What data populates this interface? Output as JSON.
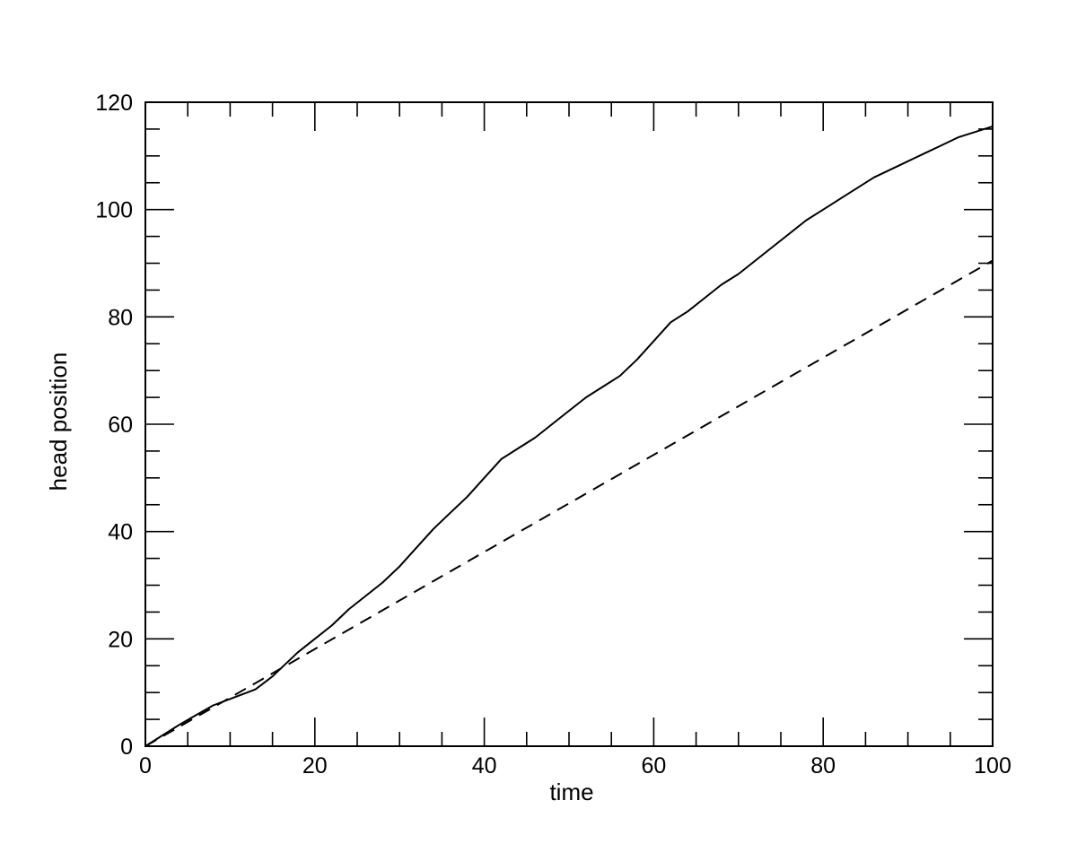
{
  "chart_data": {
    "type": "line",
    "title": "",
    "xlabel": "time",
    "ylabel": "head position",
    "xlim": [
      0,
      100
    ],
    "ylim": [
      0,
      120
    ],
    "x_major_ticks": [
      0,
      20,
      40,
      60,
      80,
      100
    ],
    "x_minor_step": 5,
    "y_major_ticks": [
      0,
      20,
      40,
      60,
      80,
      100,
      120
    ],
    "y_minor_step": 5,
    "grid": false,
    "legend": "none",
    "series": [
      {
        "style": "solid",
        "color": "#000000",
        "x": [
          0,
          2,
          4,
          6,
          8,
          10,
          12,
          13,
          15,
          16,
          18,
          20,
          22,
          24,
          26,
          28,
          30,
          32,
          34,
          36,
          38,
          40,
          42,
          44,
          46,
          48,
          50,
          52,
          54,
          56,
          58,
          60,
          62,
          64,
          66,
          68,
          70,
          72,
          74,
          76,
          78,
          80,
          82,
          84,
          86,
          88,
          90,
          92,
          94,
          96,
          98,
          100
        ],
        "y": [
          0,
          2.0,
          4.0,
          5.8,
          7.6,
          8.8,
          10.0,
          10.6,
          13.0,
          14.5,
          17.5,
          20.0,
          22.5,
          25.5,
          28.0,
          30.5,
          33.5,
          37.0,
          40.5,
          43.5,
          46.5,
          50.0,
          53.5,
          55.5,
          57.5,
          60.0,
          62.5,
          65.0,
          67.0,
          69.0,
          72.0,
          75.5,
          79.0,
          81.0,
          83.5,
          86.0,
          88.0,
          90.5,
          93.0,
          95.5,
          98.0,
          100.0,
          102.0,
          104.0,
          106.0,
          107.5,
          109.0,
          110.5,
          112.0,
          113.5,
          114.5,
          115.5
        ]
      },
      {
        "style": "dashed",
        "color": "#000000",
        "x": [
          0,
          100
        ],
        "y": [
          0,
          90.5
        ]
      }
    ]
  }
}
